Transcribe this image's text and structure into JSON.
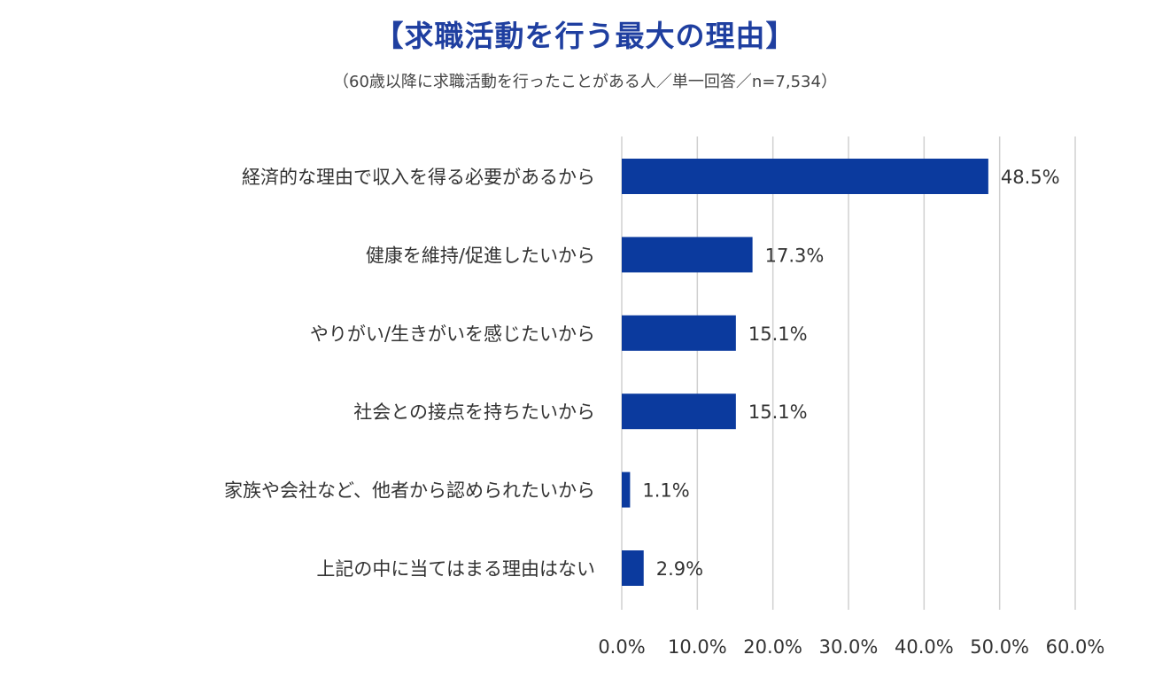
{
  "chart_data": {
    "type": "bar",
    "orientation": "horizontal",
    "title": "【求職活動を行う最大の理由】",
    "subtitle": "（60歳以降に求職活動を行ったことがある人／単一回答／n=7,534）",
    "categories": [
      "経済的な理由で収入を得る必要があるから",
      "健康を維持/促進したいから",
      "やりがい/生きがいを感じたいから",
      "社会との接点を持ちたいから",
      "家族や会社など、他者から認められたいから",
      "上記の中に当てはまる理由はない"
    ],
    "values": [
      48.5,
      17.3,
      15.1,
      15.1,
      1.1,
      2.9
    ],
    "value_labels": [
      "48.5%",
      "17.3%",
      "15.1%",
      "15.1%",
      "1.1%",
      "2.9%"
    ],
    "xlim": [
      0,
      60
    ],
    "ticks": [
      0,
      10,
      20,
      30,
      40,
      50,
      60
    ],
    "tick_labels": [
      "0.0%",
      "10.0%",
      "20.0%",
      "30.0%",
      "40.0%",
      "50.0%",
      "60.0%"
    ],
    "grid": true,
    "bar_color": "#0b3a9e",
    "grid_color": "#d0d0d0",
    "title_color": "#1f3fa0"
  }
}
